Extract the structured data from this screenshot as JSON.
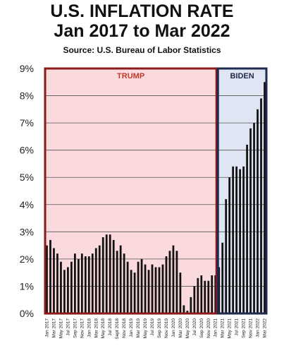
{
  "header": {
    "title_line_1": "U.S. INFLATION RATE",
    "title_line_2": "Jan 2017 to Mar 2022",
    "source": "Source: U.S. Bureau of Labor Statistics"
  },
  "colors": {
    "trump_fill": "#fadadd",
    "trump_border": "#8b1a1a",
    "trump_label": "#c0392b",
    "biden_fill": "#dfe5f3",
    "biden_border": "#1f2a4d",
    "biden_label": "#1f2a4d",
    "bar": "#111111",
    "grid": "#555555"
  },
  "chart_data": {
    "type": "bar",
    "title": "U.S. INFLATION RATE Jan 2017 to Mar 2022",
    "subtitle": "Source: U.S. Bureau of Labor Statistics",
    "xlabel": "",
    "ylabel": "",
    "ylim": [
      0,
      9
    ],
    "yticks": [
      "0%",
      "1%",
      "2%",
      "3%",
      "4%",
      "5%",
      "6%",
      "7%",
      "8%",
      "9%"
    ],
    "grid": true,
    "regions": [
      {
        "label": "TRUMP",
        "start_index": 0,
        "end_index": 48
      },
      {
        "label": "BIDEN",
        "start_index": 49,
        "end_index": 62
      }
    ],
    "tick_labels": [
      {
        "index": 0,
        "label": "Jan 2017"
      },
      {
        "index": 2,
        "label": "Mar 2017"
      },
      {
        "index": 4,
        "label": "May 2017"
      },
      {
        "index": 6,
        "label": "Jul 2017"
      },
      {
        "index": 8,
        "label": "Sep 2017"
      },
      {
        "index": 10,
        "label": "Nov 2017"
      },
      {
        "index": 12,
        "label": "Jan 2018"
      },
      {
        "index": 14,
        "label": "Mar 2018"
      },
      {
        "index": 16,
        "label": "May 2018"
      },
      {
        "index": 18,
        "label": "Jul 2018"
      },
      {
        "index": 20,
        "label": "Sept 2018"
      },
      {
        "index": 22,
        "label": "Nov 2018"
      },
      {
        "index": 24,
        "label": "Jan 2019"
      },
      {
        "index": 26,
        "label": "Mar 2019"
      },
      {
        "index": 28,
        "label": "May 2019"
      },
      {
        "index": 30,
        "label": "Jul 2019"
      },
      {
        "index": 32,
        "label": "Sep 2019"
      },
      {
        "index": 34,
        "label": "Nov 2019"
      },
      {
        "index": 36,
        "label": "Jan 2020"
      },
      {
        "index": 38,
        "label": "Mar 2020"
      },
      {
        "index": 40,
        "label": "May 2020"
      },
      {
        "index": 42,
        "label": "Jul 2020"
      },
      {
        "index": 44,
        "label": "Sep 2020"
      },
      {
        "index": 46,
        "label": "Nov 2020"
      },
      {
        "index": 48,
        "label": "Jan 2021"
      },
      {
        "index": 50,
        "label": "Mar 2021"
      },
      {
        "index": 52,
        "label": "May 2021"
      },
      {
        "index": 54,
        "label": "Jul 2021"
      },
      {
        "index": 56,
        "label": "Sep 2021"
      },
      {
        "index": 58,
        "label": "Nov 2021"
      },
      {
        "index": 60,
        "label": "Jan 2022"
      },
      {
        "index": 62,
        "label": "Mar 2022"
      }
    ],
    "values": [
      2.5,
      2.7,
      2.4,
      2.2,
      1.9,
      1.6,
      1.7,
      1.9,
      2.2,
      2.0,
      2.2,
      2.1,
      2.1,
      2.2,
      2.4,
      2.5,
      2.8,
      2.9,
      2.9,
      2.7,
      2.3,
      2.5,
      2.2,
      1.9,
      1.6,
      1.5,
      1.9,
      2.0,
      1.8,
      1.6,
      1.8,
      1.7,
      1.7,
      1.8,
      2.1,
      2.3,
      2.5,
      2.3,
      1.5,
      0.3,
      0.1,
      0.6,
      1.0,
      1.3,
      1.4,
      1.2,
      1.2,
      1.4,
      1.4,
      1.7,
      2.6,
      4.2,
      5.0,
      5.4,
      5.4,
      5.3,
      5.4,
      6.2,
      6.8,
      7.0,
      7.5,
      7.9,
      8.5
    ]
  }
}
